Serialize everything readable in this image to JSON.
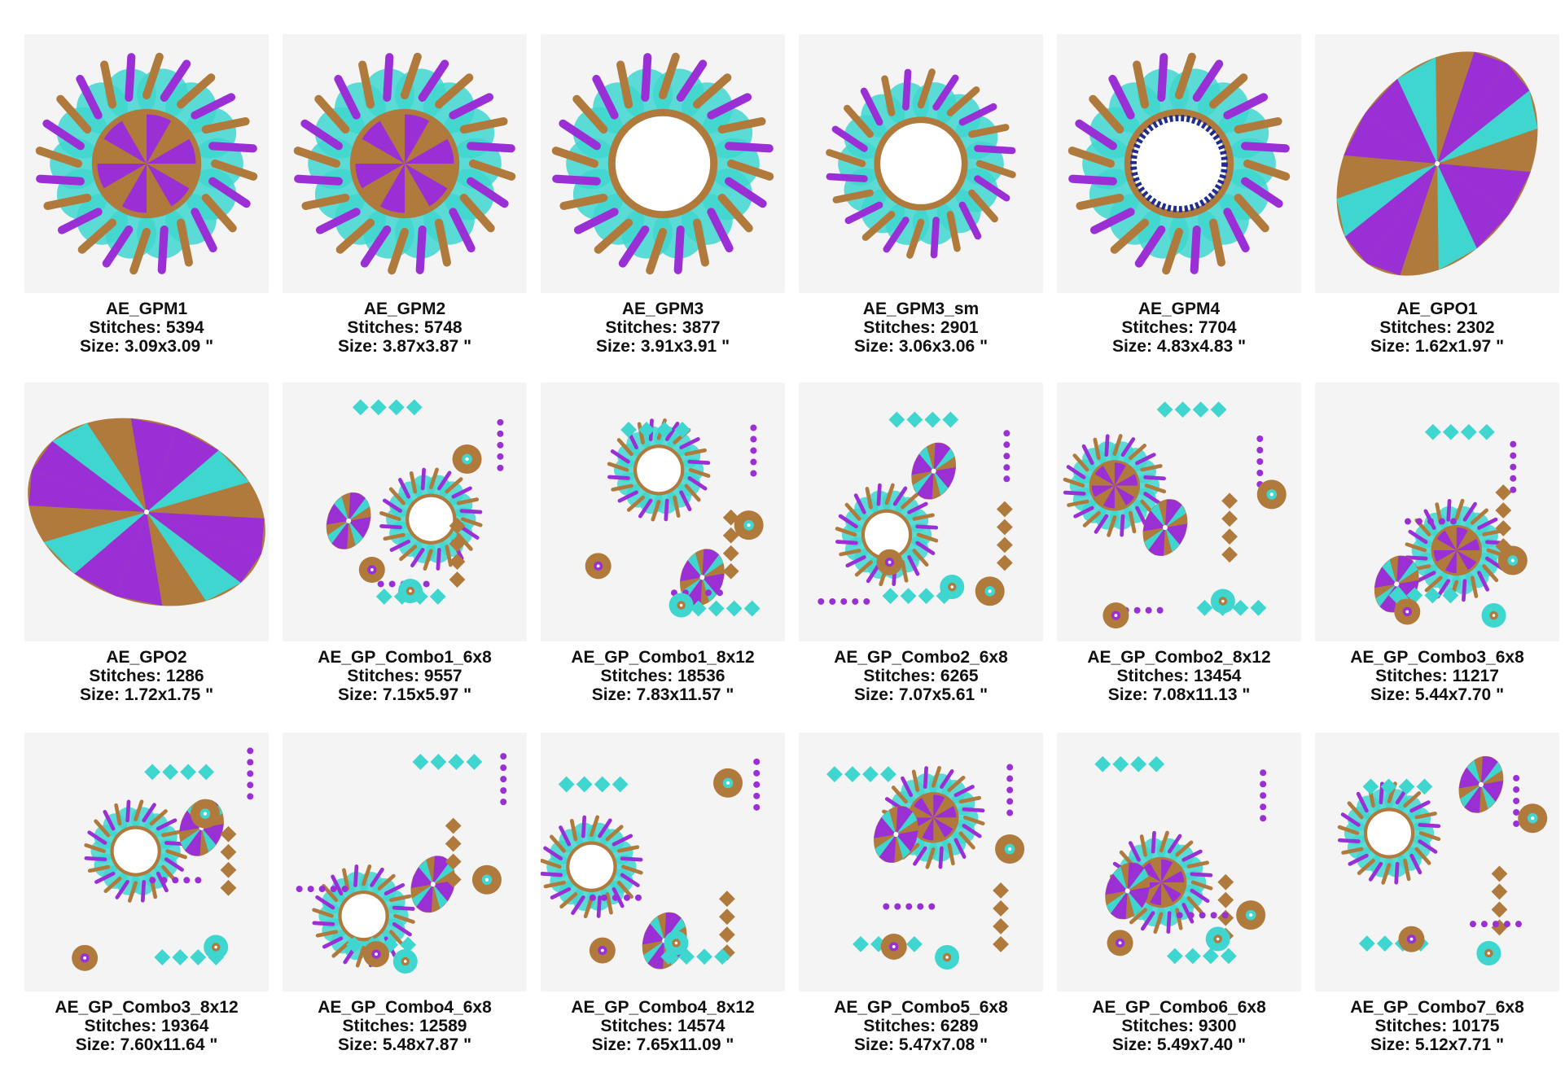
{
  "palette": {
    "purple": "#9b2fd6",
    "turquoise": "#3fd6cf",
    "brown": "#b07a3c",
    "navy": "#1e2d8f",
    "fabric": "#f4f4f4"
  },
  "designs": [
    {
      "name": "AE_GPM1",
      "stitches": "Stitches: 5394",
      "size": "Size: 3.09x3.09 \"",
      "motif": "medallion-spokes"
    },
    {
      "name": "AE_GPM2",
      "stitches": "Stitches: 5748",
      "size": "Size: 3.87x3.87 \"",
      "motif": "medallion-spokes"
    },
    {
      "name": "AE_GPM3",
      "stitches": "Stitches: 3877",
      "size": "Size: 3.91x3.91 \"",
      "motif": "medallion-ring"
    },
    {
      "name": "AE_GPM3_sm",
      "stitches": "Stitches: 2901",
      "size": "Size: 3.06x3.06 \"",
      "motif": "medallion-ring"
    },
    {
      "name": "AE_GPM4",
      "stitches": "Stitches: 7704",
      "size": "Size: 4.83x4.83 \"",
      "motif": "medallion-wreath"
    },
    {
      "name": "AE_GPO1",
      "stitches": "Stitches: 2302",
      "size": "Size: 1.62x1.97 \"",
      "motif": "oval-tall"
    },
    {
      "name": "AE_GPO2",
      "stitches": "Stitches: 1286",
      "size": "Size: 1.72x1.75 \"",
      "motif": "oval-wide"
    },
    {
      "name": "AE_GP_Combo1_6x8",
      "stitches": "Stitches: 9557",
      "size": "Size: 7.15x5.97 \"",
      "motif": "combo"
    },
    {
      "name": "AE_GP_Combo1_8x12",
      "stitches": "Stitches: 18536",
      "size": "Size: 7.83x11.57 \"",
      "motif": "combo"
    },
    {
      "name": "AE_GP_Combo2_6x8",
      "stitches": "Stitches: 6265",
      "size": "Size: 7.07x5.61 \"",
      "motif": "combo"
    },
    {
      "name": "AE_GP_Combo2_8x12",
      "stitches": "Stitches: 13454",
      "size": "Size: 7.08x11.13 \"",
      "motif": "combo"
    },
    {
      "name": "AE_GP_Combo3_6x8",
      "stitches": "Stitches: 11217",
      "size": "Size: 5.44x7.70 \"",
      "motif": "combo"
    },
    {
      "name": "AE_GP_Combo3_8x12",
      "stitches": "Stitches: 19364",
      "size": "Size: 7.60x11.64 \"",
      "motif": "combo"
    },
    {
      "name": "AE_GP_Combo4_6x8",
      "stitches": "Stitches: 12589",
      "size": "Size: 5.48x7.87 \"",
      "motif": "combo"
    },
    {
      "name": "AE_GP_Combo4_8x12",
      "stitches": "Stitches: 14574",
      "size": "Size: 7.65x11.09 \"",
      "motif": "combo"
    },
    {
      "name": "AE_GP_Combo5_6x8",
      "stitches": "Stitches: 6289",
      "size": "Size: 5.47x7.08 \"",
      "motif": "combo"
    },
    {
      "name": "AE_GP_Combo6_6x8",
      "stitches": "Stitches: 9300",
      "size": "Size: 5.49x7.40 \"",
      "motif": "combo"
    },
    {
      "name": "AE_GP_Combo7_6x8",
      "stitches": "Stitches: 10175",
      "size": "Size: 5.12x7.71 \"",
      "motif": "combo"
    }
  ]
}
